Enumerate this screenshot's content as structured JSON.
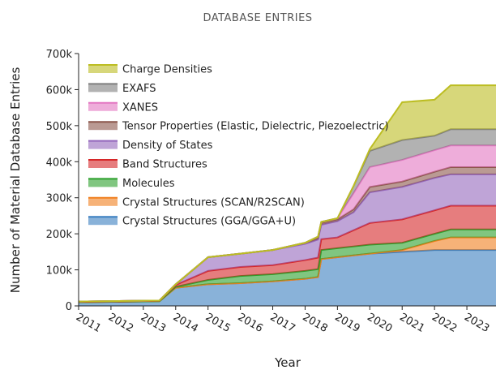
{
  "chart_data": {
    "type": "stacked_area",
    "title": "DATABASE ENTRIES",
    "x_label": "Year",
    "y_label": "Number of Material Database Entries",
    "x": [
      2011,
      2013.5,
      2014,
      2015,
      2016,
      2017,
      2018,
      2018.4,
      2018.5,
      2019,
      2019.5,
      2020,
      2021,
      2022,
      2022.5,
      2023.9
    ],
    "xlim": [
      2011,
      2023.9
    ],
    "xticks": [
      2011,
      2012,
      2013,
      2014,
      2015,
      2016,
      2017,
      2018,
      2019,
      2020,
      2021,
      2022,
      2023
    ],
    "ylim": [
      0,
      700000
    ],
    "yticks": [
      0,
      {
        "value": 100000,
        "label": "100k"
      },
      {
        "value": 200000,
        "label": "200k"
      },
      {
        "value": 300000,
        "label": "300k"
      },
      {
        "value": 400000,
        "label": "400k"
      },
      {
        "value": 500000,
        "label": "500k"
      },
      {
        "value": 600000,
        "label": "600k"
      },
      {
        "value": 700000,
        "label": "700k"
      }
    ],
    "legend": "upper left",
    "series": [
      {
        "name": "Crystal Structures (GGA/GGA+U)",
        "color": "#3a7fc0",
        "values": [
          10000,
          13000,
          50000,
          60000,
          63000,
          68000,
          75000,
          80000,
          130000,
          135000,
          140000,
          145000,
          150000,
          155000,
          155000,
          155000
        ]
      },
      {
        "name": "Crystal Structures (SCAN/R2SCAN)",
        "color": "#f07f1e",
        "values": [
          0,
          0,
          0,
          0,
          0,
          0,
          0,
          0,
          0,
          0,
          0,
          0,
          5000,
          25000,
          35000,
          35000
        ]
      },
      {
        "name": "Molecules",
        "color": "#2ca02c",
        "values": [
          0,
          0,
          3000,
          12000,
          20000,
          20000,
          22000,
          22000,
          25000,
          25000,
          25000,
          25000,
          20000,
          20000,
          22000,
          22000
        ]
      },
      {
        "name": "Band Structures",
        "color": "#d62728",
        "values": [
          1000,
          1000,
          5000,
          25000,
          25000,
          25000,
          30000,
          32000,
          30000,
          30000,
          45000,
          60000,
          65000,
          65000,
          66000,
          66000
        ]
      },
      {
        "name": "Density of States",
        "color": "#9467bd",
        "values": [
          1000,
          1000,
          2000,
          38000,
          37000,
          42000,
          45000,
          50000,
          40000,
          45000,
          50000,
          85000,
          90000,
          90000,
          87000,
          87000
        ]
      },
      {
        "name": "Tensor Properties (Elastic, Dielectric, Piezoelectric)",
        "color": "#8c564b",
        "values": [
          0,
          0,
          0,
          0,
          0,
          0,
          3000,
          5000,
          5000,
          5000,
          8000,
          15000,
          15000,
          17000,
          20000,
          20000
        ]
      },
      {
        "name": "XANES",
        "color": "#e377c2",
        "values": [
          0,
          0,
          0,
          0,
          0,
          0,
          0,
          3000,
          3000,
          3000,
          45000,
          55000,
          60000,
          60000,
          60000,
          60000
        ]
      },
      {
        "name": "EXAFS",
        "color": "#7f7f7f",
        "values": [
          0,
          0,
          0,
          0,
          0,
          0,
          0,
          0,
          0,
          0,
          20000,
          45000,
          55000,
          40000,
          45000,
          45000
        ]
      },
      {
        "name": "Charge Densities",
        "color": "#bcbd22",
        "values": [
          0,
          0,
          0,
          0,
          0,
          0,
          0,
          0,
          0,
          0,
          0,
          5000,
          105000,
          100000,
          122000,
          122000
        ]
      }
    ]
  }
}
